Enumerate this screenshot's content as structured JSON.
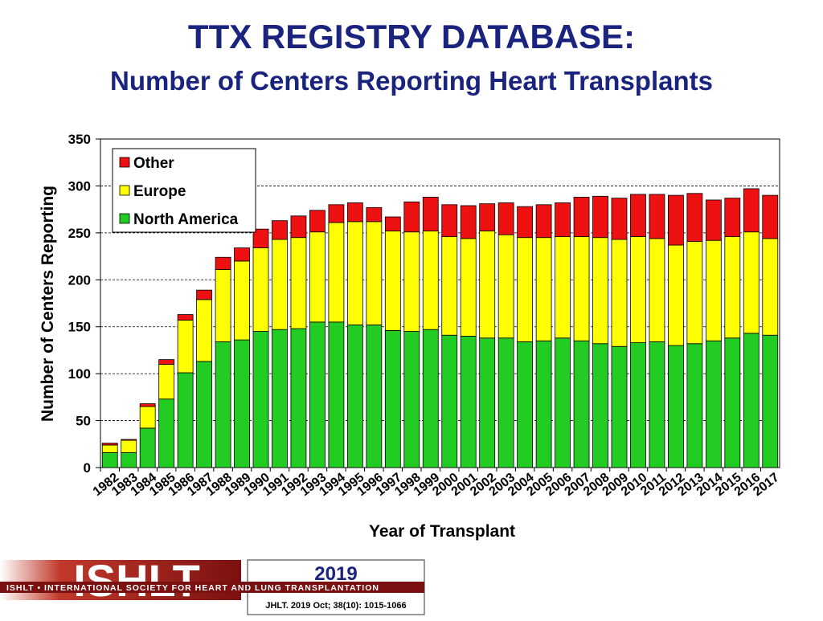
{
  "chart_data": {
    "type": "stacked-bar",
    "title": "TTX REGISTRY DATABASE:",
    "subtitle": "Number of Centers Reporting Heart Transplants",
    "x_label": "Year of Transplant",
    "y_label": "Number of Centers Reporting",
    "categories": [
      "1982",
      "1983",
      "1984",
      "1985",
      "1986",
      "1987",
      "1988",
      "1989",
      "1990",
      "1991",
      "1992",
      "1993",
      "1994",
      "1995",
      "1996",
      "1997",
      "1998",
      "1999",
      "2000",
      "2001",
      "2002",
      "2003",
      "2004",
      "2005",
      "2006",
      "2007",
      "2008",
      "2009",
      "2010",
      "2011",
      "2012",
      "2013",
      "2014",
      "2015",
      "2016",
      "2017"
    ],
    "series": [
      {
        "name": "North America",
        "color": "#22cc22",
        "values": [
          16,
          16,
          42,
          73,
          101,
          113,
          134,
          136,
          145,
          147,
          148,
          155,
          155,
          152,
          152,
          146,
          145,
          147,
          141,
          140,
          138,
          138,
          134,
          135,
          138,
          135,
          132,
          129,
          133,
          134,
          130,
          132,
          135,
          138,
          143,
          141
        ]
      },
      {
        "name": "Europe",
        "color": "#ffff00",
        "values": [
          8,
          13,
          23,
          37,
          56,
          66,
          77,
          84,
          89,
          96,
          97,
          96,
          106,
          110,
          110,
          106,
          106,
          105,
          105,
          104,
          114,
          110,
          111,
          110,
          108,
          111,
          113,
          114,
          113,
          110,
          107,
          109,
          107,
          108,
          108,
          103
        ]
      },
      {
        "name": "Other",
        "color": "#ee1111",
        "values": [
          2,
          1,
          3,
          5,
          6,
          10,
          13,
          14,
          20,
          20,
          23,
          23,
          19,
          20,
          15,
          15,
          32,
          36,
          34,
          35,
          29,
          34,
          33,
          35,
          36,
          42,
          44,
          44,
          45,
          47,
          53,
          51,
          43,
          41,
          46,
          46
        ]
      }
    ],
    "ylim": [
      0,
      350
    ],
    "yticks": [
      0,
      50,
      100,
      150,
      200,
      250,
      300,
      350
    ],
    "grid": true,
    "legend": "top-left"
  },
  "footer": {
    "logo": "ISHLT",
    "year": "2019",
    "society": "ISHLT • INTERNATIONAL SOCIETY FOR HEART AND LUNG TRANSPLANTATION",
    "citation": "JHLT. 2019 Oct; 38(10): 1015-1066"
  }
}
